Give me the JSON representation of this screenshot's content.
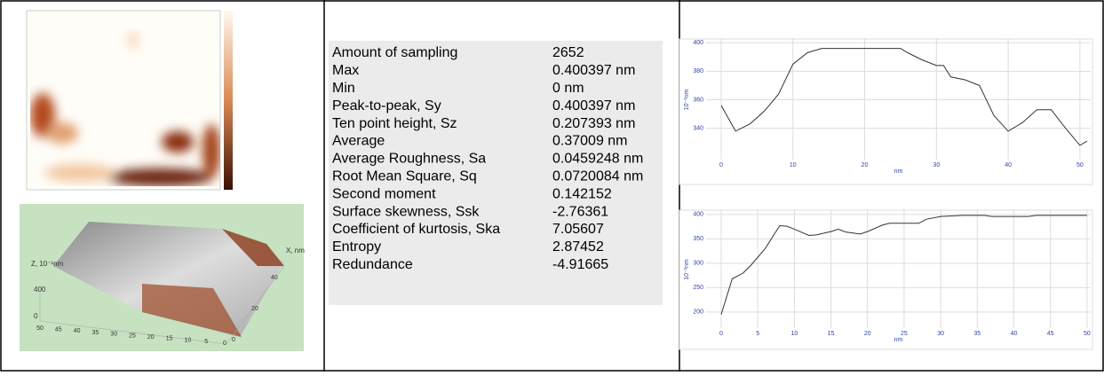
{
  "table": {
    "rows": [
      [
        "Amount of sampling",
        "2652"
      ],
      [
        "Max",
        "0.400397 nm"
      ],
      [
        "Min",
        "0 nm"
      ],
      [
        "Peak-to-peak, Sy",
        "0.400397 nm"
      ],
      [
        "Ten point height, Sz",
        "0.207393 nm"
      ],
      [
        "Average",
        "0.37009 nm"
      ],
      [
        "Average Roughness, Sa",
        "0.0459248 nm"
      ],
      [
        "Root Mean Square, Sq",
        "0.0720084 nm"
      ],
      [
        "Second moment",
        "0.142152"
      ],
      [
        "Surface skewness, Ssk",
        "-2.76361"
      ],
      [
        "Coefficient of kurtosis, Ska",
        "7.05607"
      ],
      [
        "Entropy",
        "2.87452"
      ],
      [
        "Redundance",
        "-4.91665"
      ]
    ]
  },
  "surface_3d": {
    "z_label": "Z, 10⁻¹nm",
    "x_label": "X, nm",
    "z_ticks": [
      "400",
      "0"
    ],
    "x_ticks": [
      "50",
      "45",
      "40",
      "35",
      "30",
      "25",
      "20",
      "15",
      "10",
      "5",
      "0"
    ],
    "y_ticks": [
      "40",
      "20",
      "0"
    ]
  },
  "chart_data": [
    {
      "type": "line",
      "color": "#333333",
      "grid": true,
      "x_label": "nm",
      "y_label": "10⁻¹nm",
      "x": [
        0,
        2,
        4,
        6,
        8,
        10,
        12,
        14,
        16,
        18,
        20,
        22,
        24,
        25,
        26,
        28,
        30,
        31,
        32,
        34,
        36,
        38,
        40,
        42,
        44,
        46,
        48,
        50,
        51
      ],
      "values": [
        356,
        338,
        343,
        352,
        364,
        385,
        393,
        396,
        396,
        396,
        396,
        396,
        396,
        396,
        393,
        388,
        384,
        384,
        376,
        374,
        370,
        349,
        338,
        344,
        353,
        353,
        340,
        328,
        331
      ],
      "xlim": [
        0,
        51.5
      ],
      "ylim": [
        318,
        402
      ],
      "xticks": [
        0,
        10,
        20,
        30,
        40,
        50
      ],
      "yticks": [
        340,
        360,
        380,
        400
      ]
    },
    {
      "type": "line",
      "color": "#333333",
      "grid": true,
      "x_label": "nm",
      "y_label": "10⁻¹nm",
      "x": [
        0,
        1.5,
        3,
        4,
        6,
        8,
        9,
        10,
        12,
        13,
        15,
        16,
        17,
        19,
        20,
        22,
        23,
        27,
        28,
        30,
        33,
        36,
        37,
        42,
        43,
        50
      ],
      "values": [
        195,
        268,
        280,
        295,
        330,
        377,
        376,
        370,
        357,
        358,
        365,
        370,
        364,
        360,
        365,
        378,
        382,
        382,
        390,
        396,
        398,
        398,
        396,
        396,
        398,
        398
      ],
      "xlim": [
        0,
        50.5
      ],
      "ylim": [
        167,
        407
      ],
      "xticks": [
        0,
        5,
        10,
        15,
        20,
        25,
        30,
        35,
        40,
        45,
        50
      ],
      "yticks": [
        200,
        250,
        300,
        350,
        400
      ]
    }
  ]
}
